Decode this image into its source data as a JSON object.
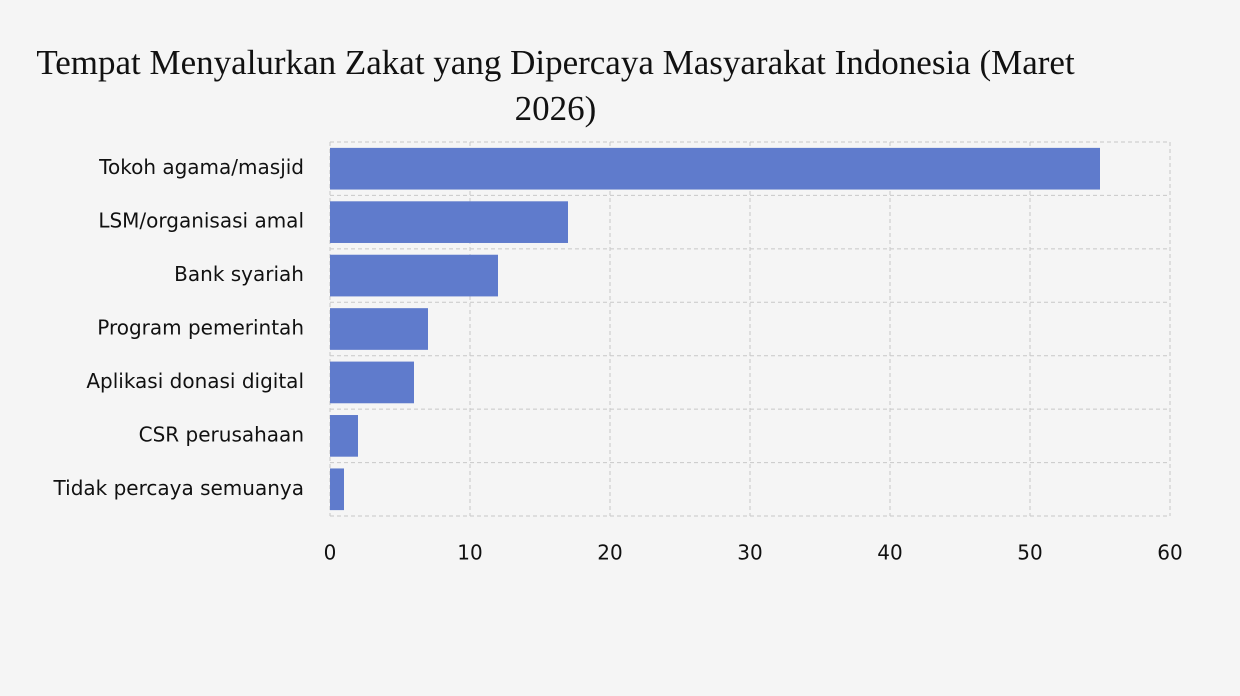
{
  "chart_data": {
    "type": "bar",
    "orientation": "horizontal",
    "title": "Tempat Menyalurkan Zakat yang Dipercaya Masyarakat Indonesia (Maret 2026)",
    "categories": [
      "Tokoh agama/masjid",
      "LSM/organisasi amal",
      "Bank syariah",
      "Program pemerintah",
      "Aplikasi donasi digital",
      "CSR perusahaan",
      "Tidak percaya semuanya"
    ],
    "values": [
      55,
      17,
      12,
      7,
      6,
      2,
      1
    ],
    "color": "#5f7bcc",
    "xlim": [
      0,
      60
    ],
    "xticks": [
      0,
      10,
      20,
      30,
      40,
      50,
      60
    ],
    "grid": true
  }
}
